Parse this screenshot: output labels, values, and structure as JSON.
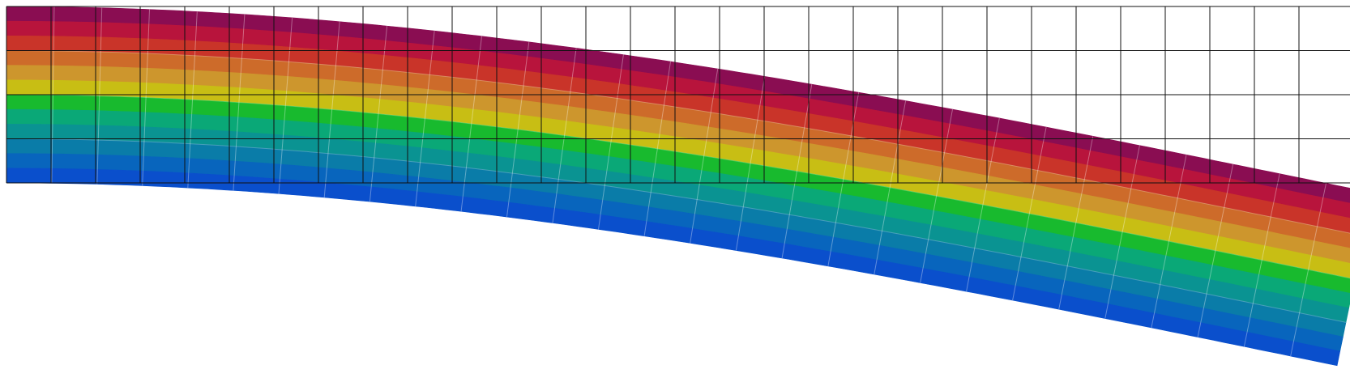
{
  "scene": {
    "description_type": "fem-cantilever-beam-deflection-contour",
    "undeformed_mesh": {
      "elements_along_length": 29,
      "elements_through_depth": 4,
      "line_color": "#111111"
    },
    "deformed_mesh": {
      "elements_along_length": 29,
      "contour_bands": 12,
      "element_line_color": "#ffffff"
    },
    "contour_colors": [
      "#0a4fcc",
      "#0865bd",
      "#0a7ca8",
      "#0a9392",
      "#0aa877",
      "#18ba2e",
      "#96c30e",
      "#c8be14",
      "#cd962d",
      "#cd6b2a",
      "#c93429",
      "#b8143c",
      "#8a0d52"
    ]
  }
}
